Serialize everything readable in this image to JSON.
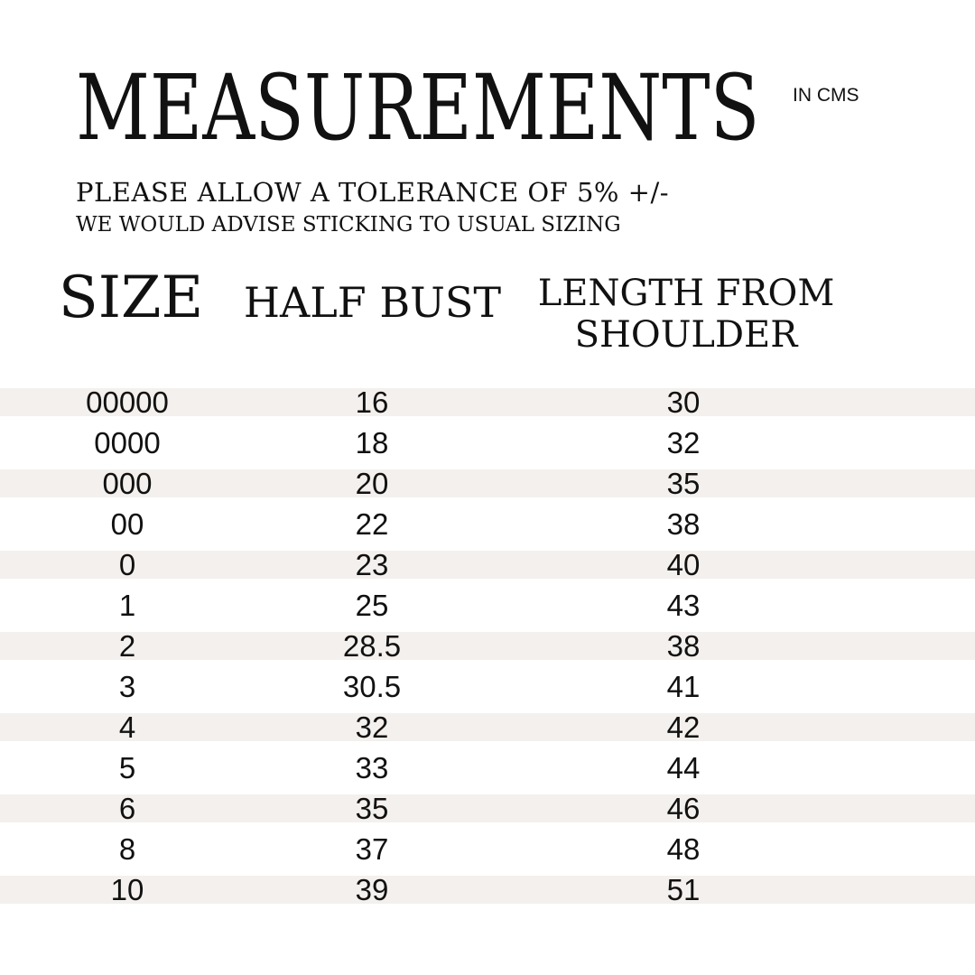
{
  "title": "MEASUREMENTS",
  "unit": "IN CMS",
  "notes": [
    "PLEASE ALLOW A TOLERANCE OF 5% +/-",
    "WE WOULD ADVISE STICKING TO USUAL SIZING"
  ],
  "columns": [
    "SIZE",
    "HALF BUST",
    "LENGTH FROM SHOULDER"
  ],
  "stripe_color": "#f3f0ed",
  "rows": [
    [
      "00000",
      "16",
      "30"
    ],
    [
      "0000",
      "18",
      "32"
    ],
    [
      "000",
      "20",
      "35"
    ],
    [
      "00",
      "22",
      "38"
    ],
    [
      "0",
      "23",
      "40"
    ],
    [
      "1",
      "25",
      "43"
    ],
    [
      "2",
      "28.5",
      "38"
    ],
    [
      "3",
      "30.5",
      "41"
    ],
    [
      "4",
      "32",
      "42"
    ],
    [
      "5",
      "33",
      "44"
    ],
    [
      "6",
      "35",
      "46"
    ],
    [
      "8",
      "37",
      "48"
    ],
    [
      "10",
      "39",
      "51"
    ]
  ]
}
